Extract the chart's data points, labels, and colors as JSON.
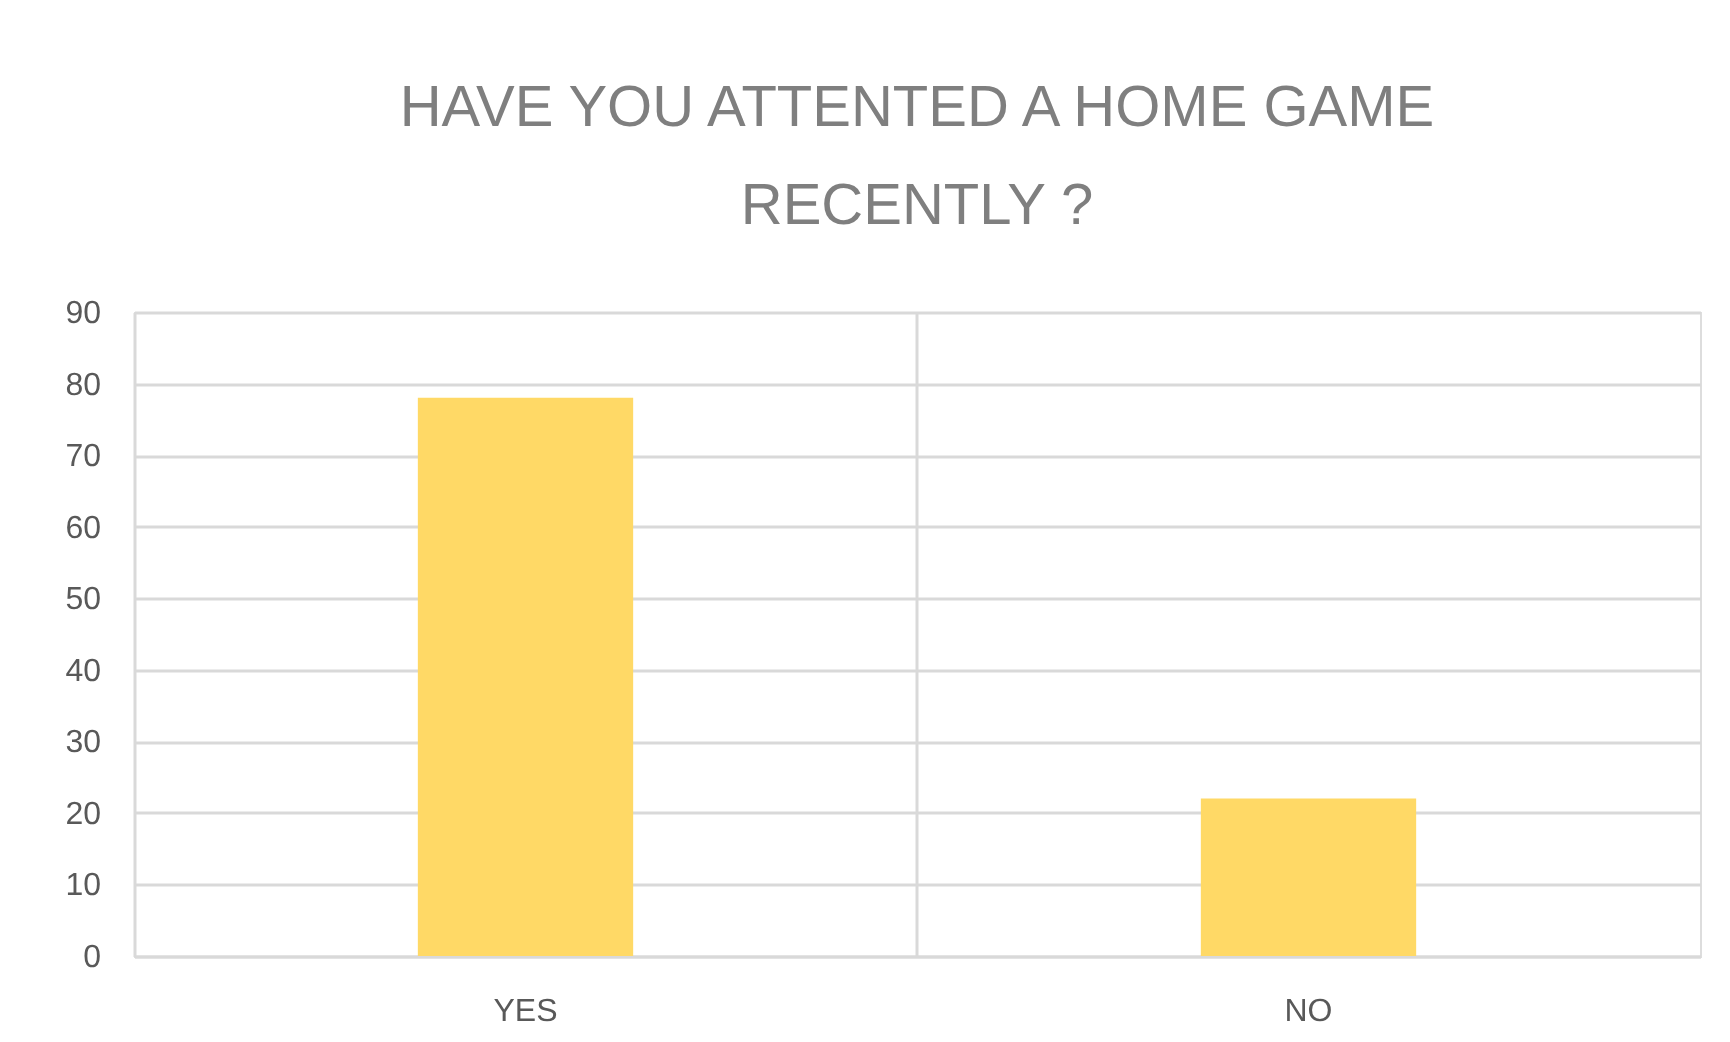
{
  "chart_data": {
    "type": "bar",
    "title": "HAVE YOU ATTENTED A HOME GAME\nRECENTLY ?",
    "categories": [
      "YES",
      "NO"
    ],
    "values": [
      78,
      22
    ],
    "color": "#ffd966",
    "ylim": [
      0,
      90
    ],
    "yticks": [
      0,
      10,
      20,
      30,
      40,
      50,
      60,
      70,
      80,
      90
    ],
    "grid": true
  }
}
